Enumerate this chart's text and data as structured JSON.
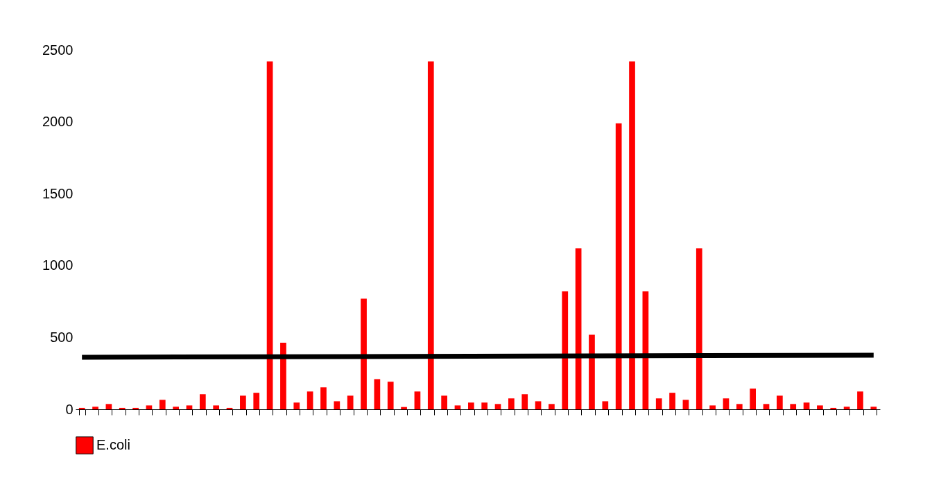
{
  "chart_data": {
    "type": "bar",
    "categories": [
      null,
      null,
      null,
      null,
      null,
      null,
      null,
      null,
      null,
      null,
      null,
      null,
      null,
      null,
      null,
      null,
      null,
      null,
      null,
      null,
      null,
      null,
      null,
      null,
      null,
      null,
      null,
      null,
      null,
      null,
      null,
      null,
      null,
      null,
      null,
      null,
      null,
      null,
      null,
      null,
      null,
      null,
      null,
      null,
      null,
      null,
      null,
      null,
      null,
      null,
      null,
      null,
      null,
      null,
      null,
      null,
      null,
      null,
      null,
      null
    ],
    "series": [
      {
        "name": "E.coli",
        "color": "#ff0000",
        "values": [
          10,
          18,
          37,
          10,
          10,
          27,
          66,
          18,
          27,
          105,
          27,
          10,
          95,
          115,
          2420,
          463,
          47,
          124,
          153,
          56,
          95,
          770,
          210,
          192,
          16,
          124,
          2420,
          95,
          27,
          47,
          47,
          37,
          76,
          105,
          56,
          37,
          820,
          1120,
          519,
          56,
          1990,
          2420,
          820,
          76,
          115,
          66,
          1120,
          27,
          76,
          37,
          144,
          37,
          95,
          37,
          47,
          27,
          10,
          18,
          124,
          18
        ]
      },
      {
        "type": "line",
        "color": "#000000",
        "values": [
          362,
          null,
          null,
          null,
          null,
          null,
          null,
          null,
          null,
          null,
          null,
          null,
          null,
          null,
          null,
          null,
          null,
          null,
          null,
          null,
          null,
          null,
          null,
          null,
          null,
          null,
          null,
          null,
          null,
          null,
          null,
          null,
          null,
          null,
          null,
          null,
          null,
          null,
          null,
          null,
          null,
          null,
          null,
          null,
          null,
          null,
          null,
          null,
          null,
          null,
          null,
          null,
          null,
          null,
          null,
          null,
          null,
          null,
          null,
          377
        ]
      }
    ],
    "ylim": [
      0,
      2500
    ],
    "yticks": [
      0,
      500,
      1000,
      1500,
      2000,
      2500
    ],
    "grid": false,
    "legend": "bottom",
    "tick_labels": "y"
  }
}
